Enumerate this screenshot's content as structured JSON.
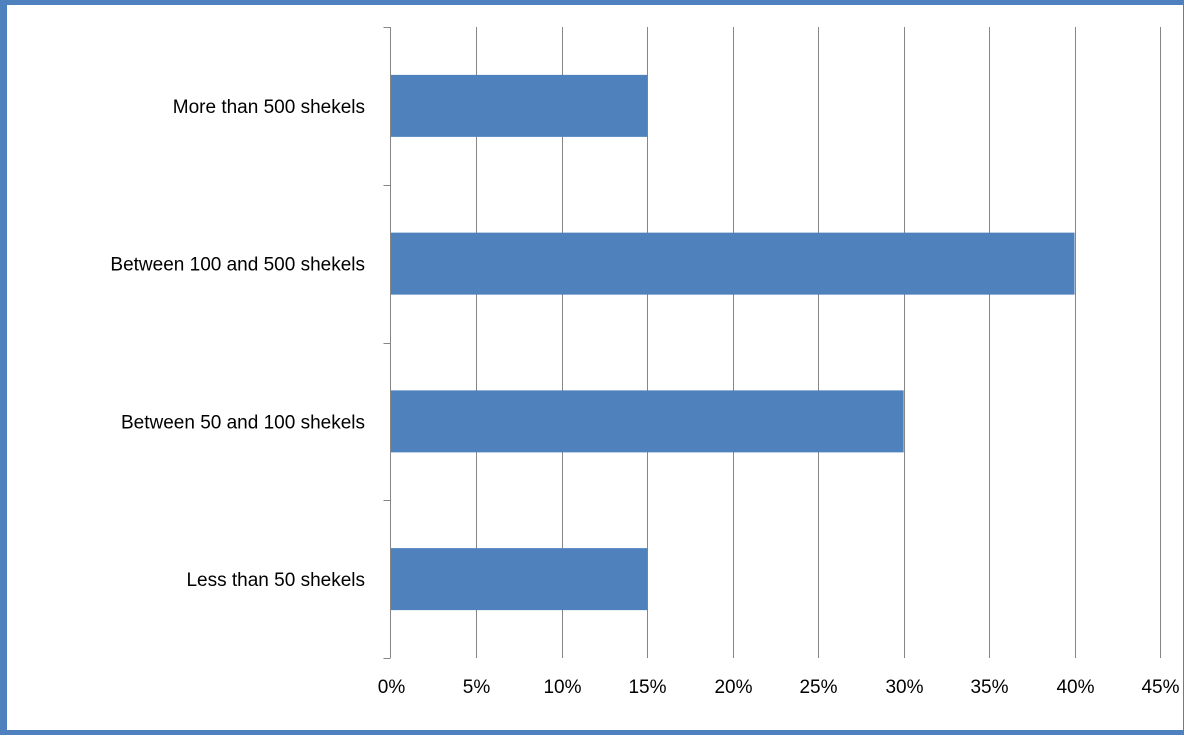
{
  "chart_data": {
    "type": "bar",
    "orientation": "horizontal",
    "title": "",
    "xlabel": "",
    "ylabel": "",
    "categories": [
      "More than 500 shekels",
      "Between 100 and 500 shekels",
      "Between 50 and 100 shekels",
      "Less than 50 shekels"
    ],
    "values": [
      15,
      40,
      30,
      15
    ],
    "xlim": [
      0,
      45
    ],
    "xticks": [
      "0%",
      "5%",
      "10%",
      "15%",
      "20%",
      "25%",
      "30%",
      "35%",
      "40%",
      "45%"
    ],
    "grid": "vertical",
    "legend": "none",
    "colors": {
      "bar": "#4f81bd",
      "frame": "#4e81bd",
      "grid": "#868686"
    }
  }
}
